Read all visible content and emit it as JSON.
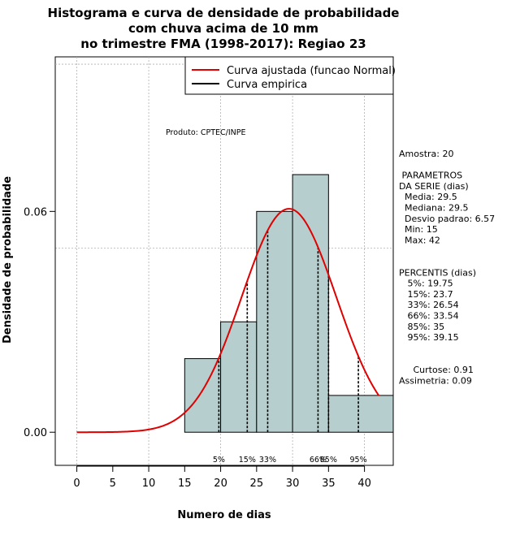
{
  "chart_data": {
    "type": "bar",
    "title_lines": [
      "Histograma e curva de densidade de probabilidade",
      "com chuva acima de 10 mm",
      "no trimestre FMA (1998-2017): Regiao 23"
    ],
    "xlabel": "Numero de dias",
    "ylabel": "Densidade de probabilidade",
    "xlim": [
      -3,
      44
    ],
    "ylim": [
      -0.009,
      0.102
    ],
    "xticks": [
      0,
      5,
      10,
      15,
      20,
      25,
      30,
      35,
      40
    ],
    "yticks": [
      0.0,
      0.06
    ],
    "ytick_labels": [
      "0.00",
      "0.06"
    ],
    "grid_x": [
      0,
      10,
      20,
      30,
      40
    ],
    "grid_y": [
      0.05,
      0.1
    ],
    "bins": [
      {
        "x0": 15,
        "x1": 20,
        "density": 0.02
      },
      {
        "x0": 20,
        "x1": 25,
        "density": 0.03
      },
      {
        "x0": 25,
        "x1": 30,
        "density": 0.06
      },
      {
        "x0": 30,
        "x1": 35,
        "density": 0.07
      },
      {
        "x0": 35,
        "x1": 44,
        "density": 0.01
      }
    ],
    "bar_color": "#b7cece",
    "fitted_curve": {
      "mean": 29.5,
      "sd": 6.57,
      "x_from": 0,
      "x_to": 42,
      "color": "#e00000"
    },
    "percentile_lines": [
      {
        "label": "5%",
        "value": 19.75
      },
      {
        "label": "15%",
        "value": 23.7
      },
      {
        "label": "33%",
        "value": 26.54
      },
      {
        "label": "66%",
        "value": 33.54
      },
      {
        "label": "85%",
        "value": 35
      },
      {
        "label": "95%",
        "value": 39.15
      }
    ],
    "legend": {
      "position": "top-right",
      "entries": [
        {
          "label": "Curva ajustada (funcao Normal)",
          "color": "#e00000"
        },
        {
          "label": "Curva empirica",
          "color": "#000000"
        }
      ]
    },
    "annotation": "Produto: CPTEC/INPE"
  },
  "stats": {
    "lines": [
      "Amostra: 20",
      "",
      " PARAMETROS",
      "DA SERIE (dias)",
      "  Media: 29.5",
      "  Mediana: 29.5",
      "  Desvio padrao: 6.57",
      "  Min: 15",
      "  Max: 42",
      "",
      "",
      "PERCENTIS (dias)",
      "   5%: 19.75",
      "   15%: 23.7",
      "   33%: 26.54",
      "   66%: 33.54",
      "   85%: 35",
      "   95%: 39.15",
      "",
      "",
      "     Curtose: 0.91",
      "Assimetria: 0.09"
    ]
  }
}
